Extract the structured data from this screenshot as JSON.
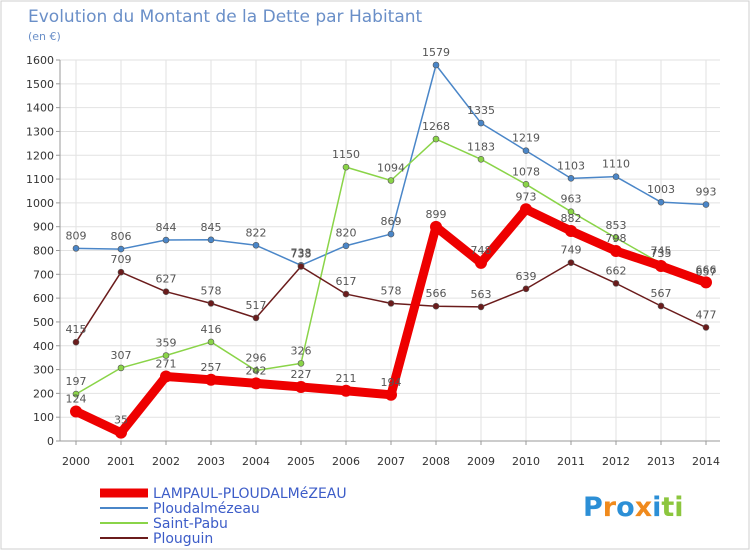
{
  "chart_data": {
    "type": "line",
    "title": "Evolution du Montant de la Dette par Habitant",
    "subtitle": "(en €)",
    "xlabel": "",
    "ylabel": "",
    "x": [
      2000,
      2001,
      2002,
      2003,
      2004,
      2005,
      2006,
      2007,
      2008,
      2009,
      2010,
      2011,
      2012,
      2013,
      2014
    ],
    "ylim": [
      0,
      1600
    ],
    "yticks": [
      0,
      100,
      200,
      300,
      400,
      500,
      600,
      700,
      800,
      900,
      1000,
      1100,
      1200,
      1300,
      1400,
      1500,
      1600
    ],
    "grid": true,
    "legend_position": "bottom-left",
    "series": [
      {
        "name": "LAMPAUL-PLOUDALMéZEAU",
        "color": "#ee0000",
        "values": [
          124,
          35,
          271,
          257,
          242,
          227,
          211,
          194,
          899,
          748,
          973,
          882,
          798,
          735,
          666
        ]
      },
      {
        "name": "Ploudalmézeau",
        "color": "#4a86c8",
        "values": [
          809,
          806,
          844,
          845,
          822,
          738,
          820,
          869,
          1579,
          1335,
          1219,
          1103,
          1110,
          1003,
          993
        ]
      },
      {
        "name": "Saint-Pabu",
        "color": "#8ad448",
        "values": [
          197,
          307,
          359,
          416,
          296,
          326,
          1150,
          1094,
          1268,
          1183,
          1078,
          963,
          853,
          745,
          657
        ]
      },
      {
        "name": "Plouguin",
        "color": "#6b1c1c",
        "values": [
          415,
          709,
          627,
          578,
          517,
          733,
          617,
          578,
          566,
          563,
          639,
          749,
          662,
          567,
          477
        ]
      }
    ]
  },
  "branding": {
    "logo_text": "Proxiti",
    "logo_letters": [
      "P",
      "r",
      "o",
      "x",
      "i",
      "t",
      "i"
    ],
    "logo_colors": [
      "#2c8fd6",
      "#f08a1c",
      "#2c8fd6",
      "#f08a1c",
      "#2c8fd6",
      "#8cc63e",
      "#8cc63e"
    ]
  }
}
